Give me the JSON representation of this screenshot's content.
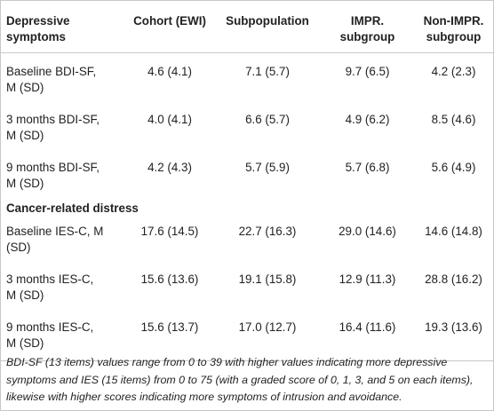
{
  "table": {
    "headers": {
      "col1": [
        "Depressive",
        "symptoms"
      ],
      "col2": "Cohort (EWI)",
      "col3": "Subpopulation",
      "col4": [
        "IMPR.",
        "subgroup"
      ],
      "col5": [
        "Non-IMPR.",
        "subgroup"
      ]
    },
    "depressive_rows": [
      {
        "label": [
          "Baseline BDI-SF,",
          "M (SD)"
        ],
        "cohort": "4.6 (4.1)",
        "subpop": "7.1 (5.7)",
        "impr": "9.7 (6.5)",
        "nonimpr": "4.2 (2.3)"
      },
      {
        "label": [
          "3 months BDI-SF,",
          "M (SD)"
        ],
        "cohort": "4.0 (4.1)",
        "subpop": "6.6 (5.7)",
        "impr": "4.9 (6.2)",
        "nonimpr": "8.5 (4.6)"
      },
      {
        "label": [
          "9 months BDI-SF,",
          "M (SD)"
        ],
        "cohort": "4.2 (4.3)",
        "subpop": "5.7 (5.9)",
        "impr": "5.7 (6.8)",
        "nonimpr": "5.6 (4.9)"
      }
    ],
    "section2_title": "Cancer-related distress",
    "distress_rows": [
      {
        "label": [
          "Baseline IES-C, M",
          "(SD)"
        ],
        "cohort": "17.6 (14.5)",
        "subpop": "22.7 (16.3)",
        "impr": "29.0 (14.6)",
        "nonimpr": "14.6 (14.8)"
      },
      {
        "label": [
          "3 months IES-C,",
          "M (SD)"
        ],
        "cohort": "15.6 (13.6)",
        "subpop": "19.1 (15.8)",
        "impr": "12.9 (11.3)",
        "nonimpr": "28.8 (16.2)"
      },
      {
        "label": [
          "9 months IES-C,",
          "M (SD)"
        ],
        "cohort": "15.6 (13.7)",
        "subpop": "17.0 (12.7)",
        "impr": "16.4 (11.6)",
        "nonimpr": "19.3 (13.6)"
      }
    ]
  },
  "footnote": "BDI-SF (13 items) values range from 0 to 39 with higher values indicating more depressive symptoms and IES (15 items) from 0 to 75 (with a graded score of 0, 1, 3, and 5 on each items), likewise with higher scores indicating more symptoms of intrusion and avoidance."
}
